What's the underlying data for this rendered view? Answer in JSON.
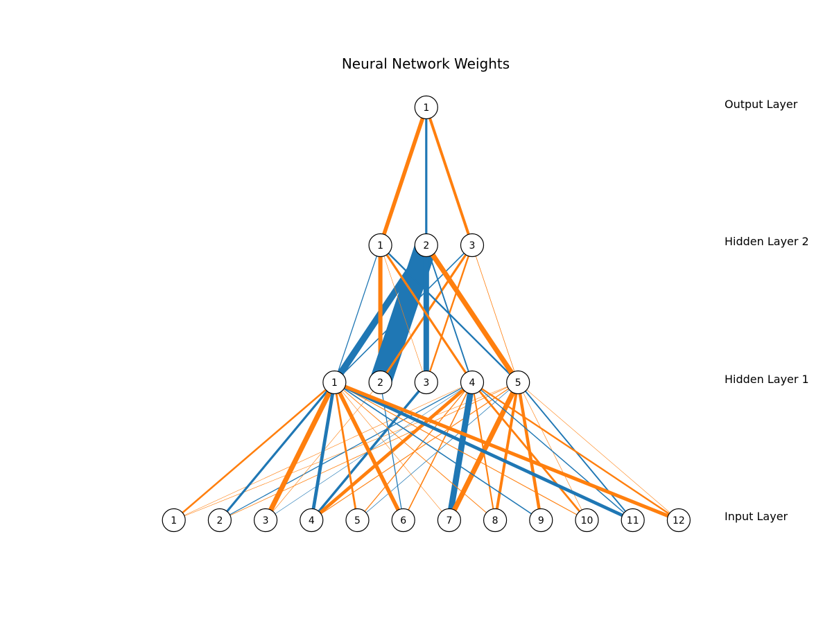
{
  "title": "Neural Network Weights",
  "colors": {
    "positive": "#ff7f0e",
    "negative": "#1f77b4",
    "node_fill": "#ffffff",
    "node_stroke": "#000000"
  },
  "layers": [
    {
      "label": "Input Layer",
      "nodes": [
        "1",
        "2",
        "3",
        "4",
        "5",
        "6",
        "7",
        "8",
        "9",
        "10",
        "11",
        "12"
      ]
    },
    {
      "label": "Hidden Layer 1",
      "nodes": [
        "1",
        "2",
        "3",
        "4",
        "5"
      ]
    },
    {
      "label": "Hidden Layer 2",
      "nodes": [
        "1",
        "2",
        "3"
      ]
    },
    {
      "label": "Output Layer",
      "nodes": [
        "1"
      ]
    }
  ],
  "connections": [
    {
      "from": [
        0,
        0
      ],
      "to": [
        1,
        0
      ],
      "weight": 1.6
    },
    {
      "from": [
        0,
        0
      ],
      "to": [
        1,
        3
      ],
      "weight": 0.15
    },
    {
      "from": [
        0,
        0
      ],
      "to": [
        1,
        4
      ],
      "weight": 0.1
    },
    {
      "from": [
        0,
        1
      ],
      "to": [
        1,
        0
      ],
      "weight": -2.0
    },
    {
      "from": [
        0,
        1
      ],
      "to": [
        1,
        3
      ],
      "weight": -0.8
    },
    {
      "from": [
        0,
        1
      ],
      "to": [
        1,
        4
      ],
      "weight": 0.5
    },
    {
      "from": [
        0,
        2
      ],
      "to": [
        1,
        0
      ],
      "weight": 4.5
    },
    {
      "from": [
        0,
        2
      ],
      "to": [
        1,
        1
      ],
      "weight": 0.2
    },
    {
      "from": [
        0,
        2
      ],
      "to": [
        1,
        3
      ],
      "weight": -0.3
    },
    {
      "from": [
        0,
        3
      ],
      "to": [
        1,
        0
      ],
      "weight": -3.0
    },
    {
      "from": [
        0,
        3
      ],
      "to": [
        1,
        2
      ],
      "weight": -2.2
    },
    {
      "from": [
        0,
        3
      ],
      "to": [
        1,
        3
      ],
      "weight": 3.0
    },
    {
      "from": [
        0,
        3
      ],
      "to": [
        1,
        4
      ],
      "weight": 0.7
    },
    {
      "from": [
        0,
        4
      ],
      "to": [
        1,
        0
      ],
      "weight": 1.8
    },
    {
      "from": [
        0,
        4
      ],
      "to": [
        1,
        3
      ],
      "weight": 0.8
    },
    {
      "from": [
        0,
        4
      ],
      "to": [
        1,
        4
      ],
      "weight": -0.5
    },
    {
      "from": [
        0,
        5
      ],
      "to": [
        1,
        0
      ],
      "weight": 3.5
    },
    {
      "from": [
        0,
        5
      ],
      "to": [
        1,
        1
      ],
      "weight": -0.8
    },
    {
      "from": [
        0,
        5
      ],
      "to": [
        1,
        3
      ],
      "weight": 1.0
    },
    {
      "from": [
        0,
        6
      ],
      "to": [
        1,
        0
      ],
      "weight": 0.3
    },
    {
      "from": [
        0,
        6
      ],
      "to": [
        1,
        3
      ],
      "weight": -5.5
    },
    {
      "from": [
        0,
        6
      ],
      "to": [
        1,
        4
      ],
      "weight": 4.5
    },
    {
      "from": [
        0,
        7
      ],
      "to": [
        1,
        0
      ],
      "weight": 0.6
    },
    {
      "from": [
        0,
        7
      ],
      "to": [
        1,
        3
      ],
      "weight": 1.3
    },
    {
      "from": [
        0,
        7
      ],
      "to": [
        1,
        4
      ],
      "weight": 2.5
    },
    {
      "from": [
        0,
        8
      ],
      "to": [
        1,
        0
      ],
      "weight": -1.0
    },
    {
      "from": [
        0,
        8
      ],
      "to": [
        1,
        4
      ],
      "weight": 2.8
    },
    {
      "from": [
        0,
        9
      ],
      "to": [
        1,
        0
      ],
      "weight": 0.7
    },
    {
      "from": [
        0,
        9
      ],
      "to": [
        1,
        3
      ],
      "weight": 1.8
    },
    {
      "from": [
        0,
        9
      ],
      "to": [
        1,
        4
      ],
      "weight": 0.4
    },
    {
      "from": [
        0,
        10
      ],
      "to": [
        1,
        0
      ],
      "weight": -3.0
    },
    {
      "from": [
        0,
        10
      ],
      "to": [
        1,
        3
      ],
      "weight": -0.9
    },
    {
      "from": [
        0,
        10
      ],
      "to": [
        1,
        4
      ],
      "weight": -1.2
    },
    {
      "from": [
        0,
        11
      ],
      "to": [
        1,
        0
      ],
      "weight": 3.2
    },
    {
      "from": [
        0,
        11
      ],
      "to": [
        1,
        3
      ],
      "weight": 1.5
    },
    {
      "from": [
        0,
        11
      ],
      "to": [
        1,
        4
      ],
      "weight": 0.3
    },
    {
      "from": [
        1,
        0
      ],
      "to": [
        2,
        0
      ],
      "weight": -0.8
    },
    {
      "from": [
        1,
        0
      ],
      "to": [
        2,
        1
      ],
      "weight": -6.0
    },
    {
      "from": [
        1,
        0
      ],
      "to": [
        2,
        2
      ],
      "weight": -1.0
    },
    {
      "from": [
        1,
        1
      ],
      "to": [
        2,
        0
      ],
      "weight": 3.8
    },
    {
      "from": [
        1,
        1
      ],
      "to": [
        2,
        1
      ],
      "weight": -20.0
    },
    {
      "from": [
        1,
        1
      ],
      "to": [
        2,
        2
      ],
      "weight": 2.0
    },
    {
      "from": [
        1,
        2
      ],
      "to": [
        2,
        0
      ],
      "weight": 0.3
    },
    {
      "from": [
        1,
        2
      ],
      "to": [
        2,
        1
      ],
      "weight": -5.0
    },
    {
      "from": [
        1,
        2
      ],
      "to": [
        2,
        2
      ],
      "weight": 1.5
    },
    {
      "from": [
        1,
        3
      ],
      "to": [
        2,
        0
      ],
      "weight": 2.0
    },
    {
      "from": [
        1,
        3
      ],
      "to": [
        2,
        1
      ],
      "weight": -1.2
    },
    {
      "from": [
        1,
        4
      ],
      "to": [
        2,
        0
      ],
      "weight": -1.5
    },
    {
      "from": [
        1,
        4
      ],
      "to": [
        2,
        1
      ],
      "weight": 4.5
    },
    {
      "from": [
        1,
        4
      ],
      "to": [
        2,
        2
      ],
      "weight": 0.5
    },
    {
      "from": [
        2,
        0
      ],
      "to": [
        3,
        0
      ],
      "weight": 3.5
    },
    {
      "from": [
        2,
        1
      ],
      "to": [
        3,
        0
      ],
      "weight": -2.0
    },
    {
      "from": [
        2,
        2
      ],
      "to": [
        3,
        0
      ],
      "weight": 2.5
    }
  ]
}
